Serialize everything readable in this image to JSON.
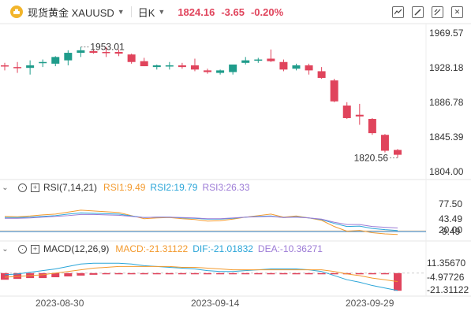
{
  "header": {
    "symbol": "现货黄金 XAUUSD",
    "period": "日K",
    "price": "1824.16",
    "change": "-3.65",
    "change_pct": "-0.20%",
    "tool_icons": [
      "indicator-icon",
      "draw-icon",
      "compare-icon",
      "close-icon"
    ]
  },
  "colors": {
    "up": "#1f9c8b",
    "down": "#e0445c",
    "rsi1": "#f39a2e",
    "rsi2": "#2aa5d8",
    "rsi3": "#9c7bd6"
  },
  "price_axis": [
    "1969.57",
    "1928.18",
    "1886.78",
    "1845.39",
    "1804.00"
  ],
  "annotations": {
    "high": "1953.01",
    "low": "1820.56"
  },
  "rsi": {
    "name": "RSI(7,14,21)",
    "rsi1": "RSI1:9.49",
    "rsi2": "RSI2:19.79",
    "rsi3": "RSI3:26.33",
    "axis": [
      "77.50",
      "43.49",
      "20.00",
      "9.49"
    ]
  },
  "macd": {
    "name": "MACD(12,26,9)",
    "macd": "MACD:-21.31122",
    "dif": "DIF:-21.01832",
    "dea": "DEA:-10.36271",
    "axis": [
      "11.35670",
      "-4.97726",
      "-21.31122"
    ]
  },
  "dates": [
    "2023-08-30",
    "2023-09-14",
    "2023-09-29"
  ],
  "chart_data": {
    "type": "candlestick",
    "ylim": [
      1804.0,
      1969.57
    ],
    "candles": [
      {
        "o": 1931,
        "h": 1934,
        "l": 1925,
        "c": 1930
      },
      {
        "o": 1929,
        "h": 1935,
        "l": 1922,
        "c": 1928
      },
      {
        "o": 1928,
        "h": 1937,
        "l": 1920,
        "c": 1931
      },
      {
        "o": 1934,
        "h": 1938,
        "l": 1929,
        "c": 1935
      },
      {
        "o": 1933,
        "h": 1942,
        "l": 1930,
        "c": 1941
      },
      {
        "o": 1937,
        "h": 1949,
        "l": 1931,
        "c": 1946
      },
      {
        "o": 1946,
        "h": 1953,
        "l": 1941,
        "c": 1949
      },
      {
        "o": 1948,
        "h": 1950,
        "l": 1945,
        "c": 1946
      },
      {
        "o": 1947,
        "h": 1953,
        "l": 1941,
        "c": 1946
      },
      {
        "o": 1947,
        "h": 1950,
        "l": 1942,
        "c": 1945
      },
      {
        "o": 1944,
        "h": 1945,
        "l": 1933,
        "c": 1935
      },
      {
        "o": 1936,
        "h": 1940,
        "l": 1930,
        "c": 1930
      },
      {
        "o": 1929,
        "h": 1932,
        "l": 1926,
        "c": 1931
      },
      {
        "o": 1930,
        "h": 1935,
        "l": 1926,
        "c": 1931
      },
      {
        "o": 1931,
        "h": 1934,
        "l": 1927,
        "c": 1929
      },
      {
        "o": 1931,
        "h": 1939,
        "l": 1924,
        "c": 1926
      },
      {
        "o": 1925,
        "h": 1927,
        "l": 1921,
        "c": 1923
      },
      {
        "o": 1922,
        "h": 1926,
        "l": 1920,
        "c": 1925
      },
      {
        "o": 1923,
        "h": 1931,
        "l": 1920,
        "c": 1932
      },
      {
        "o": 1934,
        "h": 1941,
        "l": 1932,
        "c": 1937
      },
      {
        "o": 1937,
        "h": 1940,
        "l": 1934,
        "c": 1938
      },
      {
        "o": 1939,
        "h": 1950,
        "l": 1935,
        "c": 1936
      },
      {
        "o": 1935,
        "h": 1938,
        "l": 1924,
        "c": 1926
      },
      {
        "o": 1927,
        "h": 1933,
        "l": 1925,
        "c": 1931
      },
      {
        "o": 1931,
        "h": 1933,
        "l": 1920,
        "c": 1925
      },
      {
        "o": 1924,
        "h": 1929,
        "l": 1915,
        "c": 1916
      },
      {
        "o": 1913,
        "h": 1915,
        "l": 1887,
        "c": 1888
      },
      {
        "o": 1883,
        "h": 1887,
        "l": 1867,
        "c": 1868
      },
      {
        "o": 1872,
        "h": 1885,
        "l": 1860,
        "c": 1870
      },
      {
        "o": 1867,
        "h": 1868,
        "l": 1848,
        "c": 1850
      },
      {
        "o": 1848,
        "h": 1849,
        "l": 1827,
        "c": 1829
      },
      {
        "o": 1830,
        "h": 1831,
        "l": 1820.56,
        "c": 1824.16
      }
    ],
    "rsi_series": [
      {
        "name": "RSI1",
        "values": [
          56,
          55,
          57,
          60,
          62,
          67,
          72,
          70,
          68,
          66,
          58,
          50,
          52,
          53,
          50,
          48,
          44,
          45,
          49,
          54,
          58,
          62,
          54,
          57,
          52,
          46,
          30,
          18,
          20,
          14,
          11,
          9.49
        ]
      },
      {
        "name": "RSI2",
        "values": [
          53,
          53,
          54,
          56,
          58,
          62,
          65,
          64,
          63,
          62,
          57,
          53,
          54,
          54,
          52,
          51,
          49,
          49,
          51,
          54,
          56,
          57,
          53,
          55,
          52,
          48,
          38,
          30,
          31,
          25,
          22,
          19.79
        ]
      },
      {
        "name": "RSI3",
        "values": [
          51,
          51,
          52,
          54,
          56,
          58,
          61,
          61,
          60,
          59,
          56,
          53,
          54,
          54,
          53,
          52,
          50,
          50,
          52,
          54,
          55,
          56,
          53,
          54,
          52,
          49,
          41,
          35,
          35,
          30,
          28,
          26.33
        ]
      }
    ],
    "macd_series": [
      {
        "name": "DIF",
        "values": [
          -2,
          -1,
          1,
          3,
          5,
          8,
          11,
          12,
          12,
          12,
          11,
          9,
          8,
          7,
          6,
          5,
          3,
          2,
          2,
          3,
          4,
          5,
          5,
          5,
          4,
          2,
          -3,
          -8,
          -11,
          -15,
          -18,
          -21.02
        ]
      },
      {
        "name": "DEA",
        "values": [
          -5,
          -4,
          -3,
          -2,
          0,
          2,
          4,
          6,
          7,
          8,
          8,
          8,
          8,
          8,
          7,
          7,
          6,
          5,
          4,
          4,
          4,
          4,
          4,
          4,
          4,
          4,
          2,
          -1,
          -3,
          -6,
          -8,
          -10.36
        ]
      }
    ],
    "macd_hist": [
      -8,
      -7,
      -6,
      -6,
      -5,
      -4,
      -3,
      -2,
      -1,
      -1,
      -1,
      -1,
      -1,
      -1,
      -1,
      -1,
      -1,
      -1,
      -1,
      -1,
      -1,
      -1,
      -1,
      -1,
      -1,
      -1,
      -1,
      -1,
      -1,
      -1,
      -1,
      -21.31
    ]
  }
}
